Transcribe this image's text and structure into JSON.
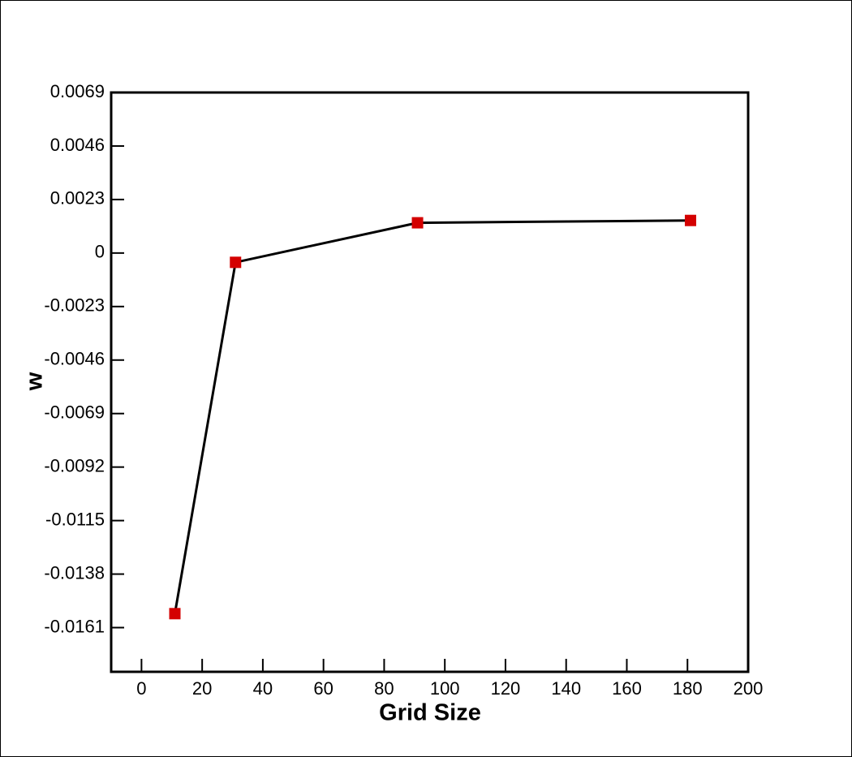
{
  "chart_data": {
    "type": "line",
    "x_label": "Grid Size",
    "y_label": "w",
    "x": [
      11,
      31,
      91,
      181
    ],
    "series": [
      {
        "color": "#000000",
        "marker_color": "#d40000",
        "values": [
          -0.0155,
          -0.0004,
          0.0013,
          0.0014
        ]
      }
    ],
    "xlim": [
      -10,
      200
    ],
    "xticks": [
      0,
      20,
      40,
      60,
      80,
      100,
      120,
      140,
      160,
      180,
      200
    ],
    "ylim": [
      -0.018,
      0.0069
    ],
    "yticks": [
      0.0069,
      0.0046,
      0.0023,
      0,
      -0.0023,
      -0.0046,
      -0.0069,
      -0.0092,
      -0.0115,
      -0.0138,
      -0.0161
    ],
    "grid": false
  }
}
